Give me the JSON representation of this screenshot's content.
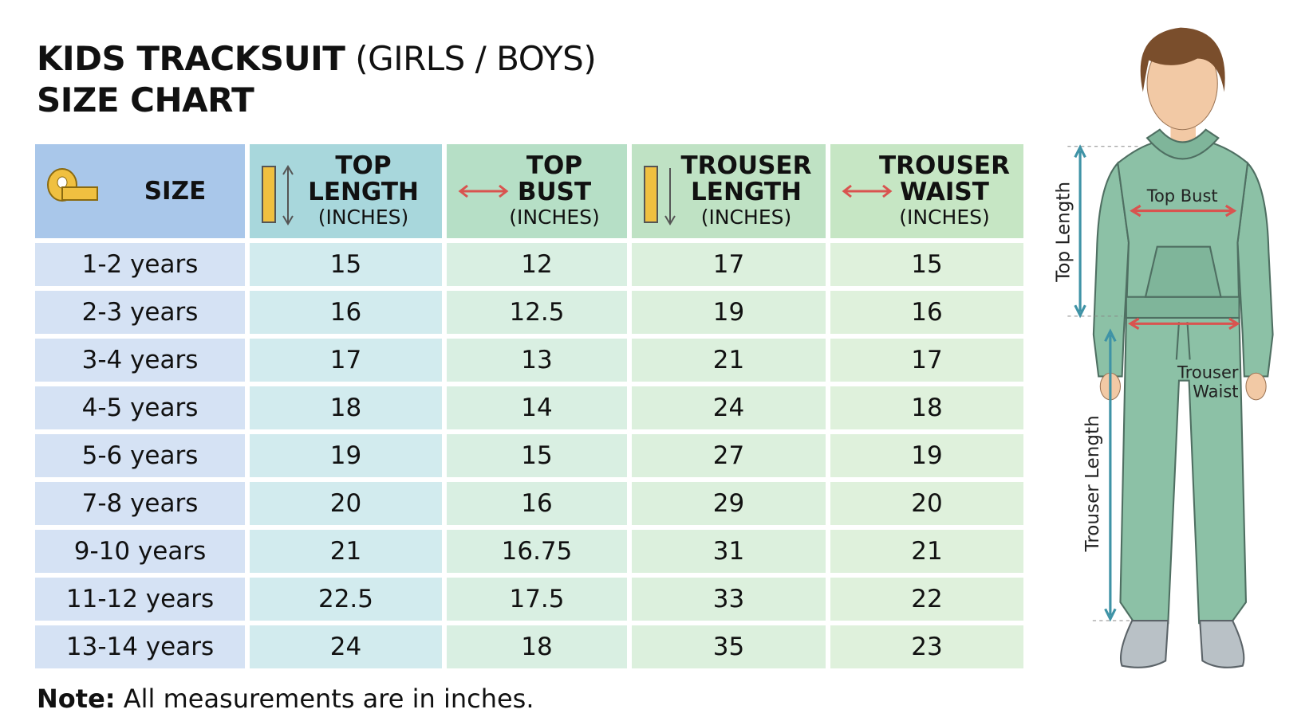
{
  "title": {
    "bold": "KIDS TRACKSUIT",
    "normal": "(GIRLS / BOYS)",
    "line2": "SIZE CHART"
  },
  "table": {
    "headers": [
      {
        "lines": [
          "SIZE"
        ]
      },
      {
        "lines": [
          "TOP",
          "LENGTH"
        ],
        "unit": "(INCHES)"
      },
      {
        "lines": [
          "TOP",
          "BUST"
        ],
        "unit": "(INCHES)"
      },
      {
        "lines": [
          "TROUSER",
          "LENGTH"
        ],
        "unit": "(INCHES)"
      },
      {
        "lines": [
          "TROUSER",
          "WAIST"
        ],
        "unit": "(INCHES)"
      }
    ],
    "rows": [
      [
        "1-2 years",
        15,
        12,
        17,
        15
      ],
      [
        "2-3 years",
        16,
        12.5,
        19,
        16
      ],
      [
        "3-4 years",
        17,
        13,
        21,
        17
      ],
      [
        "4-5 years",
        18,
        14,
        24,
        18
      ],
      [
        "5-6 years",
        19,
        15,
        27,
        19
      ],
      [
        "7-8 years",
        20,
        16,
        29,
        20
      ],
      [
        "9-10 years",
        21,
        16.75,
        31,
        21
      ],
      [
        "11-12 years",
        22.5,
        17.5,
        33,
        22
      ],
      [
        "13-14 years",
        24,
        18,
        35,
        23
      ]
    ]
  },
  "note": {
    "label": "Note:",
    "text": "All measurements are in inches."
  },
  "figure": {
    "top_bust": "Top Bust",
    "top_length": "Top Length",
    "trouser_waist": [
      "Trouser",
      "Waist"
    ],
    "trouser_length": "Trouser Length"
  }
}
